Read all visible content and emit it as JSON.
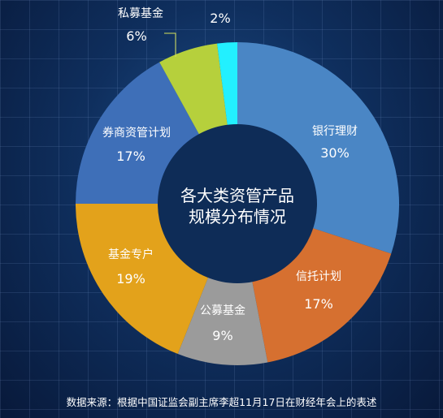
{
  "chart_data": {
    "type": "pie",
    "title": "各大类资管产品规模分布情况",
    "center_title_lines": [
      "各大类资管产品",
      "规模分布情况"
    ],
    "slices": [
      {
        "label": "银行理财",
        "value": 30,
        "pct_label": "30%",
        "color": "#4a86c5"
      },
      {
        "label": "信托计划",
        "value": 17,
        "pct_label": "17%",
        "color": "#d67030"
      },
      {
        "label": "公募基金",
        "value": 9,
        "pct_label": "9%",
        "color": "#9b9b9b"
      },
      {
        "label": "基金专户",
        "value": 19,
        "pct_label": "19%",
        "color": "#e3a21b"
      },
      {
        "label": "券商资管计划",
        "value": 17,
        "pct_label": "17%",
        "color": "#3e6fb8"
      },
      {
        "label": "私募基金",
        "value": 6,
        "pct_label": "6%",
        "color": "#b6d03c",
        "label_color": "#cfe04a"
      },
      {
        "label": "",
        "value": 2,
        "pct_label": "2%",
        "color": "#22f0ff",
        "label_color": "#2ee8f7"
      }
    ],
    "inner_circle_color": "#0e2c57"
  },
  "source_text": "数据来源：根据中国证监会副主席李超11月17日在财经年会上的表述"
}
